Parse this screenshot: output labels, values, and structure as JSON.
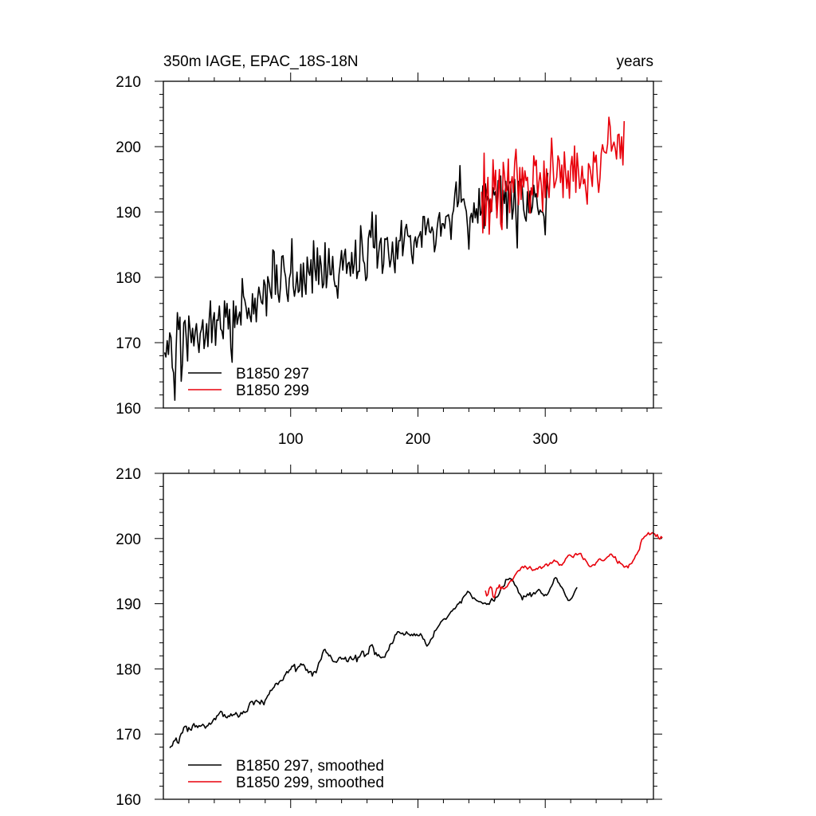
{
  "chart_data": [
    {
      "type": "line",
      "title_left": "350m IAGE, EPAC_18S-18N",
      "title_right": "years",
      "xlim": [
        0,
        385
      ],
      "ylim": [
        160,
        210
      ],
      "yticks": [
        160,
        170,
        180,
        190,
        200,
        210
      ],
      "xticks": [
        100,
        200,
        300
      ],
      "show_xtick_labels": true,
      "legend_position": "bottom-left",
      "series": [
        {
          "name": "B1850 297",
          "color": "#000000",
          "x_start": 1,
          "values": [
            168.5,
            167.8,
            170.3,
            168.2,
            171.5,
            170.8,
            166.2,
            165.4,
            161.2,
            169.0,
            174.6,
            172.0,
            173.9,
            164.1,
            166.8,
            173.0,
            173.4,
            170.6,
            167.2,
            174.1,
            172.0,
            170.0,
            172.2,
            169.5,
            171.6,
            172.9,
            170.3,
            168.5,
            171.4,
            172.1,
            173.5,
            169.1,
            170.7,
            172.9,
            169.4,
            173.5,
            176.4,
            170.0,
            173.4,
            174.6,
            169.6,
            173.5,
            173.4,
            175.6,
            172.1,
            171.8,
            170.6,
            176.4,
            173.9,
            176.0,
            172.1,
            175.1,
            169.2,
            167.0,
            176.4,
            172.3,
            175.6,
            172.8,
            173.9,
            174.7,
            172.7,
            179.8,
            177.1,
            176.5,
            175.4,
            173.7,
            175.3,
            174.1,
            173.2,
            177.5,
            174.4,
            176.8,
            173.2,
            176.6,
            178.5,
            177.3,
            176.2,
            175.9,
            179.6,
            178.8,
            174.1,
            180.1,
            179.2,
            177.8,
            176.8,
            184.2,
            183.9,
            177.4,
            181.9,
            177.6,
            176.2,
            178.6,
            183.2,
            183.3,
            181.1,
            180.1,
            177.6,
            176.3,
            179.8,
            180.7,
            185.9,
            178.7,
            177.1,
            178.4,
            180.8,
            177.7,
            178.0,
            182.0,
            177.0,
            182.2,
            179.1,
            177.4,
            183.1,
            180.9,
            180.3,
            182.7,
            177.6,
            185.6,
            181.4,
            179.5,
            184.5,
            178.9,
            183.3,
            181.8,
            178.4,
            179.0,
            185.3,
            178.4,
            180.6,
            184.4,
            180.4,
            180.4,
            183.2,
            179.7,
            178.6,
            178.7,
            176.8,
            180.4,
            182.1,
            184.1,
            181.1,
            183.3,
            184.3,
            180.6,
            182.1,
            182.3,
            180.2,
            183.8,
            180.6,
            182.1,
            185.7,
            179.8,
            180.9,
            180.9,
            187.9,
            185.6,
            182.6,
            182.1,
            179.5,
            180.0,
            185.9,
            187.2,
            186.1,
            190.0,
            184.6,
            184.5,
            189.5,
            181.4,
            183.5,
            185.3,
            186.0,
            180.6,
            182.0,
            185.9,
            185.8,
            186.1,
            183.6,
            181.6,
            182.8,
            185.4,
            182.5,
            180.7,
            186.1,
            182.8,
            185.6,
            185.6,
            188.7,
            183.3,
            185.3,
            187.4,
            188.1,
            186.4,
            186.2,
            186.4,
            183.5,
            182.1,
            185.4,
            186.2,
            184.6,
            186.0,
            186.4,
            187.0,
            184.6,
            189.3,
            189.3,
            186.5,
            188.0,
            189.0,
            187.0,
            186.8,
            187.7,
            187.0,
            183.9,
            185.0,
            187.4,
            189.0,
            189.9,
            186.3,
            188.2,
            188.2,
            187.5,
            189.3,
            189.4,
            189.6,
            188.5,
            185.8,
            189.5,
            190.3,
            192.8,
            194.6,
            190.8,
            191.6,
            197.1,
            191.5,
            191.9,
            192.0,
            190.9,
            190.1,
            187.6,
            184.3,
            189.1,
            189.8,
            188.4,
            191.4,
            189.1,
            190.5,
            188.3,
            193.6,
            189.5,
            190.1,
            194.0,
            187.5,
            194.3,
            191.7,
            192.4,
            191.8,
            189.9,
            191.1,
            193.7,
            192.6,
            193.1,
            189.6,
            194.8,
            193.9,
            195.5,
            188.3,
            193.3,
            191.3,
            194.7,
            187.5,
            193.8,
            194.6,
            194.6,
            188.9,
            190.6,
            195.0,
            189.3,
            184.5,
            194.7,
            194.1,
            195.0,
            193.5,
            190.4,
            189.2,
            188.6,
            193.1,
            189.9,
            193.2,
            189.9,
            190.8,
            194.1,
            192.3,
            192.8,
            190.7,
            189.6,
            190.3,
            190.0,
            190.0,
            189.3,
            186.5,
            193.0,
            196.0
          ]
        },
        {
          "name": "B1850 299",
          "color": "#e8000b",
          "x_start": 250,
          "values": [
            193.1,
            186.8,
            199.0,
            187.9,
            192.2,
            195.3,
            186.6,
            192.0,
            190.1,
            198.0,
            193.4,
            196.4,
            189.1,
            192.4,
            196.5,
            188.2,
            187.3,
            197.6,
            195.7,
            193.1,
            193.4,
            198.1,
            189.9,
            194.2,
            195.4,
            193.0,
            197.6,
            199.6,
            195.6,
            191.1,
            196.8,
            191.9,
            196.8,
            193.8,
            196.3,
            194.8,
            195.3,
            192.0,
            189.8,
            193.7,
            192.6,
            198.6,
            197.1,
            197.9,
            192.3,
            194.5,
            196.0,
            194.0,
            190.1,
            197.8,
            192.2,
            196.6,
            194.4,
            192.2,
            196.3,
            201.3,
            197.5,
            193.7,
            194.4,
            195.3,
            198.6,
            197.9,
            194.5,
            197.2,
            192.2,
            199.2,
            196.0,
            193.6,
            196.3,
            192.1,
            197.0,
            198.5,
            194.7,
            200.1,
            193.0,
            199.0,
            196.4,
            193.6,
            194.5,
            197.0,
            194.3,
            195.0,
            193.2,
            191.2,
            197.4,
            196.9,
            195.6,
            193.9,
            199.2,
            197.6,
            198.7,
            195.2,
            193.0,
            195.2,
            199.0,
            200.3,
            199.3,
            199.1,
            199.0,
            200.4,
            204.5,
            203.1,
            199.3,
            200.1,
            200.7,
            199.7,
            198.1,
            201.8,
            201.9,
            198.2,
            201.5,
            197.2,
            203.9
          ]
        }
      ]
    },
    {
      "type": "line",
      "xlim": [
        0,
        385
      ],
      "ylim": [
        160,
        210
      ],
      "yticks": [
        160,
        170,
        180,
        190,
        200,
        210
      ],
      "xticks": [
        100,
        200,
        300
      ],
      "show_xtick_labels": false,
      "legend_position": "bottom-left",
      "series": [
        {
          "name": "B1850 297, smoothed",
          "color": "#000000",
          "x_start": 5,
          "values": [
            167.9,
            168.1,
            168.2,
            168.9,
            169.0,
            169.4,
            168.7,
            168.6,
            169.6,
            170.1,
            170.2,
            171.0,
            171.2,
            171.2,
            170.4,
            171.0,
            170.7,
            170.6,
            171.3,
            171.6,
            171.1,
            171.3,
            171.0,
            171.3,
            171.2,
            171.3,
            171.5,
            171.3,
            170.9,
            171.2,
            171.3,
            171.7,
            171.5,
            171.7,
            172.1,
            172.4,
            172.2,
            172.8,
            172.9,
            173.2,
            173.5,
            173.4,
            172.7,
            173.0,
            172.6,
            172.5,
            172.8,
            172.7,
            173.1,
            172.8,
            173.0,
            173.0,
            173.3,
            173.0,
            172.6,
            172.8,
            173.3,
            173.1,
            173.5,
            173.3,
            173.4,
            173.5,
            174.2,
            174.8,
            175.0,
            175.0,
            174.5,
            175.0,
            175.2,
            175.0,
            174.9,
            174.6,
            175.2,
            174.9,
            174.5,
            175.2,
            175.5,
            175.9,
            176.1,
            176.7,
            176.7,
            177.0,
            177.2,
            177.7,
            177.8,
            177.6,
            178.0,
            178.2,
            178.2,
            178.3,
            178.9,
            179.2,
            179.6,
            179.4,
            179.8,
            179.9,
            180.4,
            180.4,
            180.7,
            179.6,
            180.0,
            180.3,
            180.4,
            180.8,
            180.6,
            180.7,
            180.4,
            179.8,
            179.9,
            179.4,
            179.6,
            179.6,
            178.9,
            179.5,
            179.6,
            179.4,
            180.1,
            180.9,
            181.2,
            181.5,
            182.4,
            182.9,
            183.0,
            182.5,
            182.4,
            182.0,
            182.1,
            181.7,
            181.2,
            181.1,
            181.1,
            181.0,
            181.3,
            181.7,
            181.8,
            181.5,
            181.6,
            181.5,
            181.8,
            181.2,
            181.1,
            181.6,
            181.9,
            181.5,
            181.4,
            181.6,
            182.1,
            181.1,
            181.8,
            181.8,
            182.2,
            182.7,
            182.7,
            181.9,
            182.1,
            182.3,
            182.3,
            183.4,
            183.6,
            183.7,
            183.2,
            182.2,
            182.5,
            182.0,
            182.2,
            181.9,
            181.7,
            181.8,
            181.8,
            181.8,
            182.4,
            182.7,
            182.9,
            183.7,
            183.9,
            183.9,
            184.4,
            185.2,
            185.3,
            185.7,
            185.7,
            185.5,
            185.4,
            185.5,
            185.2,
            185.3,
            185.7,
            185.4,
            185.3,
            185.1,
            185.3,
            185.1,
            185.4,
            185.1,
            185.3,
            185.1,
            185.1,
            185.4,
            185.1,
            184.6,
            184.5,
            183.9,
            183.5,
            183.7,
            184.0,
            184.5,
            184.7,
            184.9,
            185.8,
            185.9,
            186.2,
            186.5,
            186.8,
            187.2,
            187.4,
            187.6,
            187.7,
            187.6,
            187.9,
            188.2,
            188.5,
            188.8,
            188.9,
            189.2,
            189.2,
            189.5,
            189.9,
            190.0,
            190.3,
            190.1,
            190.8,
            191.1,
            191.3,
            191.5,
            191.9,
            191.8,
            191.6,
            191.2,
            190.8,
            190.9,
            190.7,
            190.5,
            190.4,
            190.3,
            190.3,
            190.2,
            190.0,
            190.1,
            190.1,
            189.9,
            190.0,
            189.9,
            190.4,
            190.8,
            190.5,
            190.4,
            191.0,
            191.0,
            191.2,
            191.6,
            192.2,
            192.6,
            192.6,
            192.8,
            193.7,
            193.7,
            193.7,
            193.9,
            193.8,
            193.7,
            193.4,
            192.9,
            192.7,
            192.4,
            191.7,
            191.5,
            191.2,
            190.6,
            191.2,
            191.1,
            191.1,
            191.5,
            191.3,
            191.7,
            191.1,
            191.4,
            191.7,
            191.5,
            191.8,
            192.0,
            192.2,
            192.0,
            191.6,
            191.5,
            191.2,
            191.4,
            191.3,
            191.5,
            191.9,
            192.4,
            192.7,
            193.1,
            193.8,
            194.0,
            193.9,
            193.3,
            193.1,
            192.7,
            192.5,
            192.2,
            191.7,
            191.2,
            190.9,
            190.5,
            190.5,
            190.7,
            190.9,
            191.3,
            191.8,
            192.2,
            192.5
          ]
        },
        {
          "name": "B1850 299, smoothed",
          "color": "#e8000b",
          "x_start": 253,
          "values": [
            192.0,
            191.2,
            191.4,
            192.3,
            192.6,
            192.4,
            191.1,
            190.9,
            191.7,
            192.4,
            192.4,
            192.9,
            192.2,
            192.6,
            192.3,
            192.3,
            192.5,
            192.6,
            193.0,
            193.3,
            193.6,
            193.5,
            193.9,
            194.3,
            194.6,
            194.9,
            195.1,
            195.1,
            195.5,
            195.7,
            195.5,
            195.8,
            195.6,
            195.3,
            195.5,
            195.7,
            195.4,
            195.1,
            195.2,
            195.2,
            195.4,
            195.3,
            195.6,
            195.7,
            195.4,
            195.6,
            195.7,
            196.0,
            196.1,
            195.8,
            196.0,
            196.3,
            196.2,
            196.4,
            196.7,
            196.5,
            196.5,
            196.3,
            195.9,
            196.0,
            195.9,
            196.2,
            196.4,
            196.9,
            197.1,
            197.4,
            197.5,
            197.4,
            197.2,
            197.1,
            197.5,
            197.7,
            197.5,
            197.6,
            197.7,
            197.7,
            197.2,
            196.8,
            196.9,
            196.6,
            196.3,
            195.9,
            195.7,
            195.7,
            195.9,
            196.0,
            195.9,
            196.3,
            196.5,
            196.8,
            196.9,
            196.7,
            196.6,
            196.6,
            196.8,
            197.0,
            197.2,
            197.3,
            197.6,
            197.6,
            197.3,
            197.1,
            197.2,
            196.6,
            196.2,
            196.5,
            196.2,
            196.1,
            195.9,
            195.6,
            195.7,
            195.8,
            195.5,
            196.0,
            196.1,
            196.2,
            196.6,
            196.9,
            197.4,
            197.6,
            198.0,
            198.3,
            199.3,
            199.9,
            200.0,
            200.3,
            200.4,
            200.6,
            200.9,
            200.6,
            200.7,
            200.9,
            200.8,
            200.7,
            200.3,
            200.6,
            200.1,
            199.9,
            200.3,
            200.1
          ]
        }
      ]
    }
  ]
}
